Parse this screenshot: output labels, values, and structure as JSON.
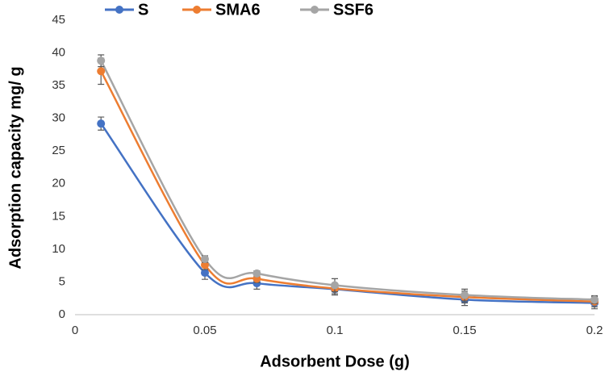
{
  "chart_data": {
    "type": "line",
    "x_label": "Adsorbent Dose (g)",
    "y_label": "Adsorption capacity mg/ g",
    "x": [
      0.01,
      0.05,
      0.07,
      0.1,
      0.15,
      0.2
    ],
    "series": [
      {
        "name": "S",
        "color": "#4472c4",
        "values": [
          29.2,
          6.4,
          4.8,
          3.9,
          2.3,
          1.8
        ],
        "errors": [
          1.0,
          1.0,
          0.9,
          0.9,
          0.9,
          0.9
        ]
      },
      {
        "name": "SMA6",
        "color": "#ed7d31",
        "values": [
          37.2,
          7.6,
          5.5,
          4.0,
          2.7,
          2.0
        ],
        "errors": [
          2.0,
          0.7,
          0.6,
          0.8,
          0.9,
          0.8
        ]
      },
      {
        "name": "SSF6",
        "color": "#a5a5a5",
        "values": [
          38.8,
          8.5,
          6.3,
          4.5,
          3.0,
          2.3
        ],
        "errors": [
          0.9,
          0.5,
          0.4,
          1.0,
          0.9,
          0.6
        ]
      }
    ],
    "xlim": [
      0,
      0.2
    ],
    "xticks": [
      0,
      0.05,
      0.1,
      0.15,
      0.2
    ],
    "ylim": [
      0,
      45
    ],
    "yticks": [
      0,
      5,
      10,
      15,
      20,
      25,
      30,
      35,
      40,
      45
    ],
    "legend": "top",
    "grid": false
  }
}
